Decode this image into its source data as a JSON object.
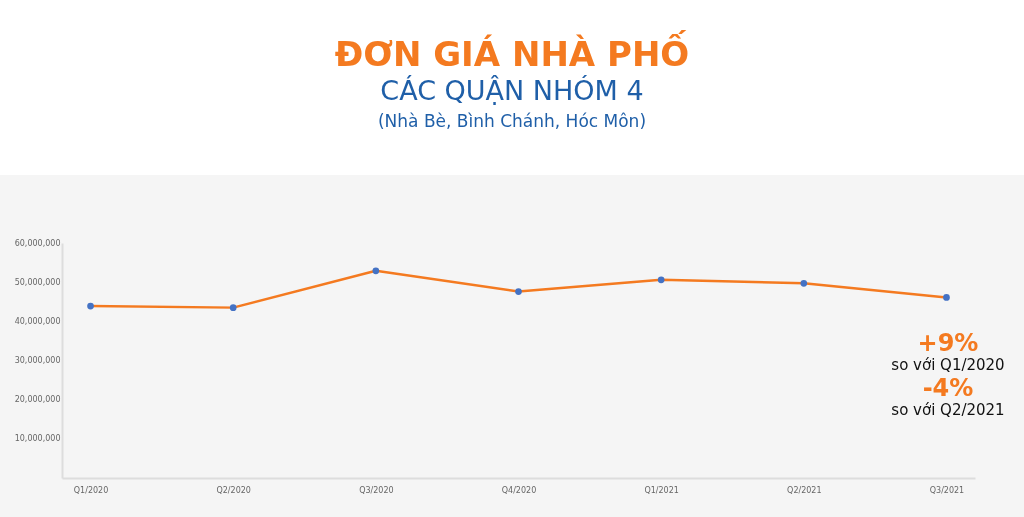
{
  "chart_data": {
    "type": "line",
    "title": "ĐƠN GIÁ NHÀ PHỐ",
    "subtitle": "CÁC QUẬN NHÓM 4",
    "annotations": [
      "(Nhà Bè, Bình Chánh, Hóc Môn)",
      "+9%",
      "so với Q1/2020",
      "-4%",
      "so với Q2/2021"
    ],
    "categories": [
      "Q1/2020",
      "Q2/2020",
      "Q3/2020",
      "Q4/2020",
      "Q1/2021",
      "Q2/2021",
      "Q3/2021"
    ],
    "series": [
      {
        "color": "#f47a20",
        "values": [
          43900000,
          43500000,
          52900000,
          47600000,
          50600000,
          49700000,
          46100000
        ]
      }
    ],
    "ylim": [
      0,
      60000000
    ],
    "yticks": [
      {
        "value": 10000000,
        "label": "10,000,000"
      },
      {
        "value": 20000000,
        "label": "20,000,000"
      },
      {
        "value": 30000000,
        "label": "30,000,000"
      },
      {
        "value": 40000000,
        "label": "40,000,000"
      },
      {
        "value": 50000000,
        "label": "50,000,000"
      },
      {
        "value": 60000000,
        "label": "60,000,000"
      }
    ],
    "grid": false,
    "marker": "circle",
    "line_style": "solid"
  }
}
